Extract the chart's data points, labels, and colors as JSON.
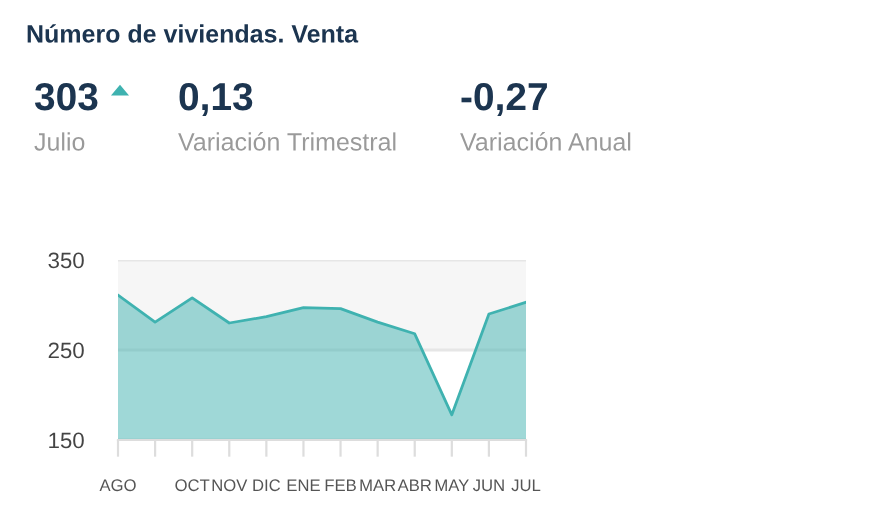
{
  "chart_data": {
    "type": "area",
    "title": "Número de viviendas. Venta",
    "annotations": [
      "303",
      "Julio",
      "0,13",
      "Variación Trimestral",
      "-0,27",
      "Variación Anual"
    ],
    "categories": [
      "AGO",
      null,
      "OCT",
      "NOV",
      "DIC",
      "ENE",
      "FEB",
      "MAR",
      "ABR",
      "MAY",
      "JUN",
      "JUL"
    ],
    "series": [
      {
        "color": "#3fb2b0",
        "values": [
          311,
          281,
          308,
          280,
          287,
          297,
          296,
          281,
          268,
          178,
          290,
          303
        ]
      }
    ],
    "ylim": [
      150,
      350
    ],
    "yticks": [
      150,
      250,
      350
    ],
    "grid": "y",
    "bands": [
      {
        "axis": "y",
        "from": 250,
        "to": 350,
        "color": "#f6f6f6"
      }
    ]
  }
}
